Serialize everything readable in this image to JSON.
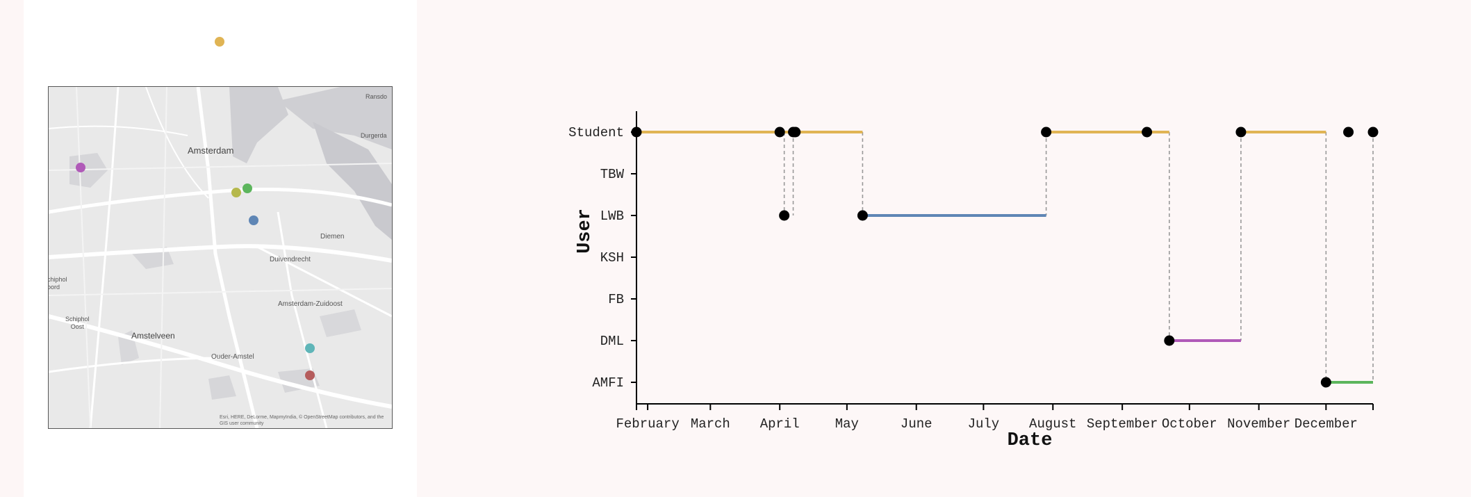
{
  "map": {
    "labels": {
      "amsterdam": "Amsterdam",
      "ransdorp": "Ransdo",
      "durgerdam": "Durgerda",
      "diemen": "Diemen",
      "duivendrecht": "Duivendrecht",
      "zuidoost": "Amsterdam-Zuidoost",
      "schiphol_noord": "chiphol\noord",
      "schiphol_oost": "Schiphol\nOost",
      "amstelveen": "Amstelveen",
      "ouder_amstel": "Ouder-Amstel"
    },
    "attribution": "Esri, HERE, DeLorme, MapmyIndia, © OpenStreetMap contributors, and the GIS user community",
    "marker_colors": {
      "student": "#e0b454",
      "dml": "#b05ab8",
      "tbw": "#b5b84c",
      "amfi": "#5cb55c",
      "lwb": "#5f86b5",
      "fb": "#5fb5b8",
      "ksh": "#b55c5c"
    }
  },
  "chart_data": {
    "type": "line",
    "xlabel": "Date",
    "ylabel": "User",
    "categories": [
      "Student",
      "TBW",
      "LWB",
      "KSH",
      "FB",
      "DML",
      "AMFI"
    ],
    "x_tick_labels": [
      "February",
      "March",
      "April",
      "May",
      "June",
      "July",
      "August",
      "September",
      "October",
      "November",
      "December"
    ],
    "xlim": [
      "2019-01-27",
      "2019-12-22"
    ],
    "x_ticks": [
      "2019-01-27",
      "2019-02-01",
      "2019-03-01",
      "2019-04-01",
      "2019-05-01",
      "2019-06-01",
      "2019-07-01",
      "2019-08-01",
      "2019-09-01",
      "2019-10-01",
      "2019-11-01",
      "2019-12-01",
      "2019-12-22"
    ],
    "colors": {
      "Student": "#e0b454",
      "LWB": "#5f86b5",
      "DML": "#b05ab8",
      "AMFI": "#5cb55c"
    },
    "segments": [
      {
        "user": "Student",
        "start": "2019-01-27",
        "end": "2019-05-08"
      },
      {
        "user": "LWB",
        "start": "2019-04-03",
        "end": "2019-04-05"
      },
      {
        "user": "LWB",
        "start": "2019-05-08",
        "end": "2019-07-29"
      },
      {
        "user": "Student",
        "start": "2019-07-29",
        "end": "2019-09-22"
      },
      {
        "user": "DML",
        "start": "2019-09-22",
        "end": "2019-10-24"
      },
      {
        "user": "Student",
        "start": "2019-10-24",
        "end": "2019-12-01"
      },
      {
        "user": "AMFI",
        "start": "2019-12-01",
        "end": "2019-12-22"
      }
    ],
    "points": [
      {
        "user": "Student",
        "date": "2019-01-27"
      },
      {
        "user": "Student",
        "date": "2019-04-01"
      },
      {
        "user": "Student",
        "date": "2019-04-07"
      },
      {
        "user": "Student",
        "date": "2019-04-08"
      },
      {
        "user": "LWB",
        "date": "2019-04-03"
      },
      {
        "user": "LWB",
        "date": "2019-05-08"
      },
      {
        "user": "Student",
        "date": "2019-07-29"
      },
      {
        "user": "Student",
        "date": "2019-09-12"
      },
      {
        "user": "DML",
        "date": "2019-09-22"
      },
      {
        "user": "Student",
        "date": "2019-10-24"
      },
      {
        "user": "Student",
        "date": "2019-12-11"
      },
      {
        "user": "AMFI",
        "date": "2019-12-01"
      },
      {
        "user": "Student",
        "date": "2019-12-22"
      }
    ],
    "transitions": [
      {
        "date": "2019-04-03",
        "from": "Student",
        "to": "LWB"
      },
      {
        "date": "2019-04-07",
        "from": "Student",
        "to": "LWB"
      },
      {
        "date": "2019-05-08",
        "from": "Student",
        "to": "LWB"
      },
      {
        "date": "2019-07-29",
        "from": "Student",
        "to": "LWB"
      },
      {
        "date": "2019-09-22",
        "from": "Student",
        "to": "DML"
      },
      {
        "date": "2019-10-24",
        "from": "Student",
        "to": "DML"
      },
      {
        "date": "2019-12-01",
        "from": "Student",
        "to": "AMFI"
      },
      {
        "date": "2019-12-22",
        "from": "Student",
        "to": "AMFI"
      }
    ]
  }
}
